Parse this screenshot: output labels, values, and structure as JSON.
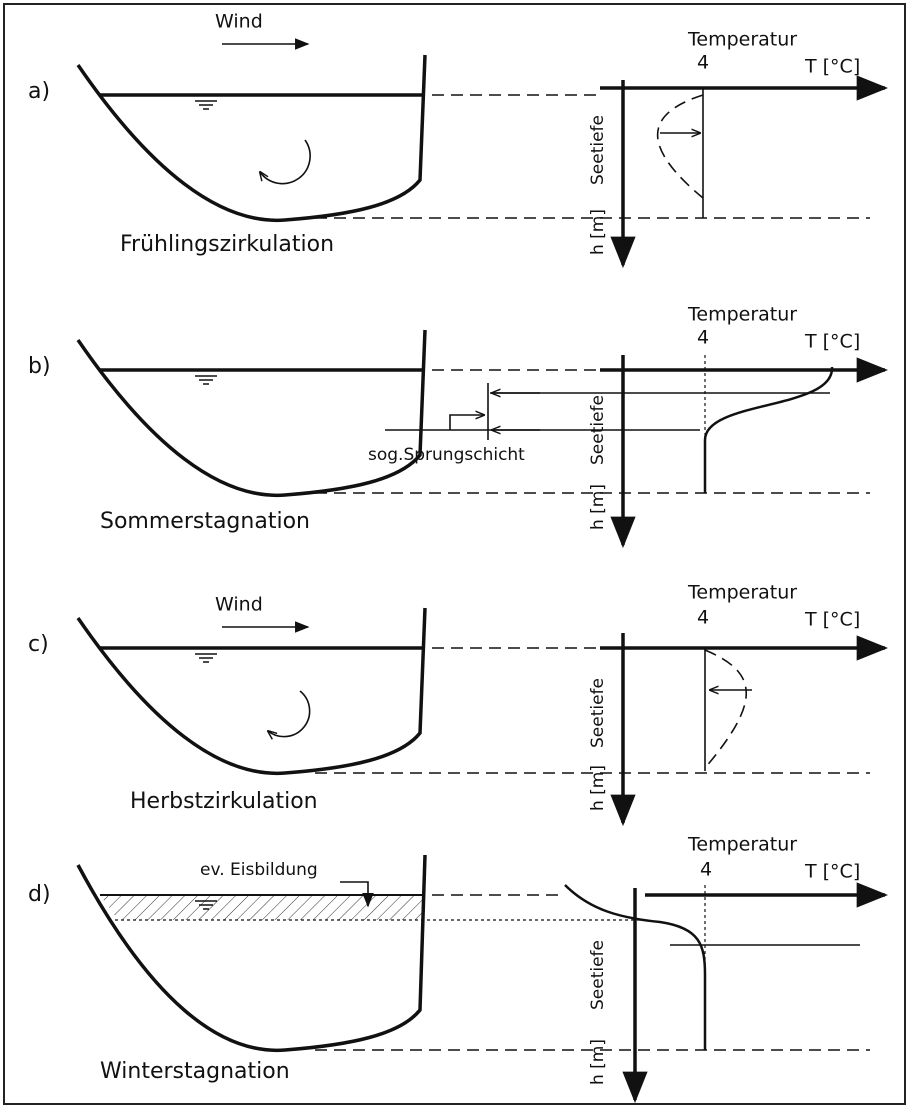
{
  "panels": [
    {
      "label": "a)",
      "wind": "Wind",
      "caption": "Frühlingszirkulation",
      "temperature": "Temperatur",
      "tick": "4",
      "t_axis": "T [°C]",
      "depth": "Seetiefe",
      "depth_unit": "h [m]"
    },
    {
      "label": "b)",
      "caption": "Sommerstagnation",
      "annotation": "sog.Sprungschicht",
      "temperature": "Temperatur",
      "tick": "4",
      "t_axis": "T [°C]",
      "depth": "Seetiefe",
      "depth_unit": "h [m]"
    },
    {
      "label": "c)",
      "wind": "Wind",
      "caption": "Herbstzirkulation",
      "temperature": "Temperatur",
      "tick": "4",
      "t_axis": "T [°C]",
      "depth": "Seetiefe",
      "depth_unit": "h [m]"
    },
    {
      "label": "d)",
      "caption": "Winterstagnation",
      "annotation": "ev. Eisbildung",
      "temperature": "Temperatur",
      "tick": "4",
      "t_axis": "T [°C]",
      "depth": "Seetiefe",
      "depth_unit": "h [m]"
    }
  ]
}
